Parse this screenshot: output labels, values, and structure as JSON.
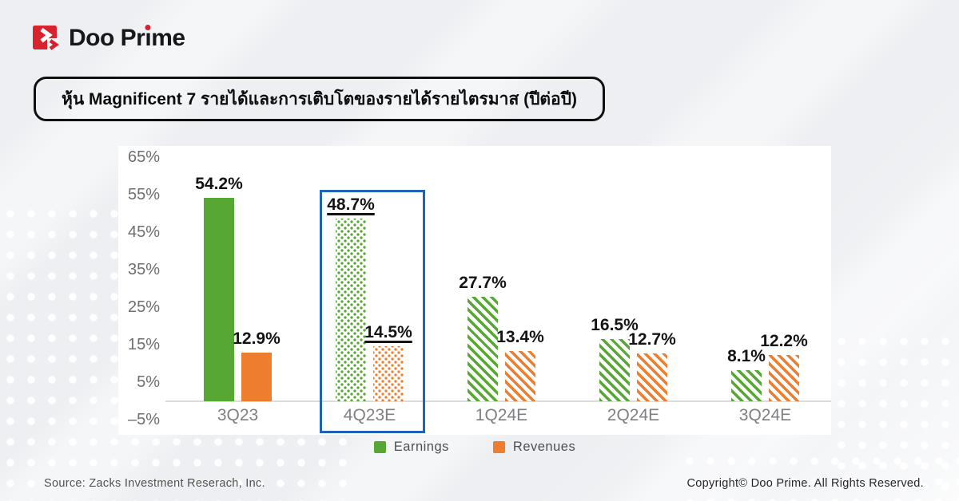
{
  "logo": {
    "parts": [
      "Doo Pr",
      "ı",
      "me"
    ],
    "brand_red": "#d7232e"
  },
  "title_banner": {
    "text": "หุ้น Magnificent 7 รายได้และการเติบโตของรายได้รายไตรมาส (ปีต่อปี)"
  },
  "chart_data": {
    "type": "bar",
    "title": "Magnificent 7 quarterly earnings and revenue growth (YoY)",
    "categories": [
      "3Q23",
      "4Q23E",
      "1Q24E",
      "2Q24E",
      "3Q24E"
    ],
    "series": [
      {
        "name": "Earnings",
        "color": "#56a733",
        "values": [
          54.2,
          48.7,
          27.7,
          16.5,
          8.1
        ]
      },
      {
        "name": "Revenues",
        "color": "#ee7d2e",
        "values": [
          12.9,
          14.5,
          13.4,
          12.7,
          12.2
        ]
      }
    ],
    "unit": "%",
    "ylim": [
      -5,
      65
    ],
    "ytick_labels": [
      "65%",
      "55%",
      "45%",
      "35%",
      "25%",
      "15%",
      "5%",
      "–5%"
    ],
    "bar_fill_styles": [
      "solid",
      "dots",
      "stripes",
      "stripes",
      "stripes"
    ],
    "highlight": {
      "category": "4Q23E",
      "box_color": "#1e63b4",
      "labels_underlined": true
    },
    "grid": false,
    "legend_position": "bottom"
  },
  "legend": [
    {
      "label": "Earnings",
      "color": "#56a733"
    },
    {
      "label": "Revenues",
      "color": "#ee7d2e"
    }
  ],
  "footer": {
    "source": "Source: Zacks Investment Reserach, Inc.",
    "copyright": "Copyright© Doo Prime. All Rights Reserved."
  }
}
